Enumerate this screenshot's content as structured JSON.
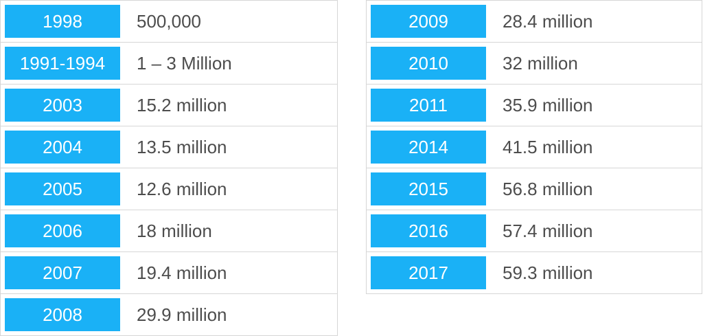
{
  "tables": [
    {
      "rows": [
        {
          "year": "1998",
          "value": "500,000"
        },
        {
          "year": "1991-1994",
          "value": "1 – 3 Million"
        },
        {
          "year": "2003",
          "value": "15.2 million"
        },
        {
          "year": "2004",
          "value": "13.5 million"
        },
        {
          "year": "2005",
          "value": "12.6 million"
        },
        {
          "year": "2006",
          "value": "18 million"
        },
        {
          "year": "2007",
          "value": "19.4 million"
        },
        {
          "year": "2008",
          "value": "29.9 million"
        }
      ]
    },
    {
      "rows": [
        {
          "year": "2009",
          "value": "28.4 million"
        },
        {
          "year": "2010",
          "value": "32 million"
        },
        {
          "year": "2011",
          "value": "35.9 million"
        },
        {
          "year": "2014",
          "value": "41.5 million"
        },
        {
          "year": "2015",
          "value": "56.8 million"
        },
        {
          "year": "2016",
          "value": "57.4 million"
        },
        {
          "year": "2017",
          "value": "59.3 million"
        }
      ]
    }
  ]
}
